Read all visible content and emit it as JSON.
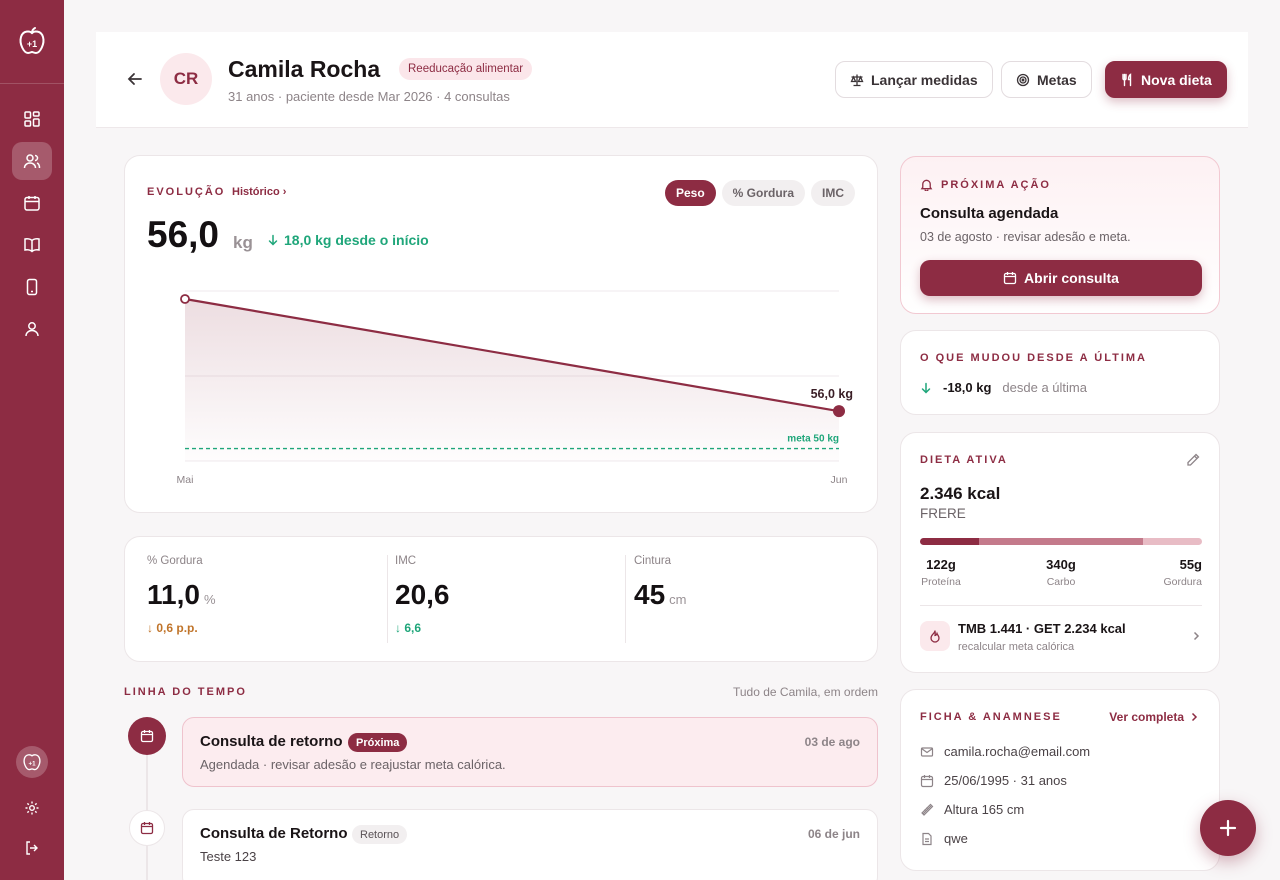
{
  "sidebar": {
    "logo_text": "+1",
    "active_item": "patients"
  },
  "header": {
    "initials": "CR",
    "name": "Camila Rocha",
    "tag": "Reeducação alimentar",
    "subtitle": "31 anos · paciente desde Mar 2026 · 4 consultas",
    "buttons": {
      "measure": "Lançar medidas",
      "goals": "Metas",
      "new_diet": "Nova dieta"
    }
  },
  "evolution": {
    "label": "EVOLUÇÃO",
    "history_link": "Histórico",
    "tabs": [
      "Peso",
      "% Gordura",
      "IMC"
    ],
    "active_tab": "Peso",
    "value": "56,0",
    "unit": "kg",
    "delta": "18,0 kg desde o início",
    "end_label": "56,0 kg",
    "goal_label": "meta 50 kg"
  },
  "chart_data": {
    "type": "line",
    "x": [
      "Mai",
      "Jun"
    ],
    "series": [
      {
        "values": [
          74.0,
          56.0
        ]
      }
    ],
    "goal": 50,
    "y_unit": "kg"
  },
  "metrics": [
    {
      "label": "% Gordura",
      "value": "11,0",
      "unit": "%",
      "delta": "0,6 p.p.",
      "delta_color": "#c0742a"
    },
    {
      "label": "IMC",
      "value": "20,6",
      "unit": "",
      "delta": "6,6",
      "delta_color": "#1fa67a"
    },
    {
      "label": "Cintura",
      "value": "45",
      "unit": "cm",
      "delta": "",
      "delta_color": "#1fa67a"
    }
  ],
  "timeline": {
    "label": "LINHA DO TEMPO",
    "subtitle": "Tudo de Camila, em ordem",
    "items": [
      {
        "title": "Consulta de retorno",
        "tag": "Próxima",
        "date": "03 de ago",
        "desc": "Agendada · revisar adesão e reajustar meta calórica."
      },
      {
        "title": "Consulta de Retorno",
        "tag": "Retorno",
        "date": "06 de jun",
        "desc": "Teste 123"
      }
    ]
  },
  "next_action": {
    "label": "PRÓXIMA AÇÃO",
    "title": "Consulta agendada",
    "subtitle": "03 de agosto · revisar adesão e meta.",
    "button": "Abrir consulta"
  },
  "changes": {
    "label": "O QUE MUDOU DESDE A ÚLTIMA",
    "value": "-18,0 kg",
    "note": "desde a última"
  },
  "diet": {
    "label": "DIETA ATIVA",
    "kcal": "2.346 kcal",
    "formula": "FRERE",
    "macros": [
      {
        "grams": "122g",
        "name": "Proteína",
        "share": 0.21,
        "color": "#8d2c43"
      },
      {
        "grams": "340g",
        "name": "Carbo",
        "share": 0.58,
        "color": "#c47a8b"
      },
      {
        "grams": "55g",
        "name": "Gordura",
        "share": 0.21,
        "color": "#e8bcc5"
      }
    ],
    "tmb": "TMB 1.441 · GET 2.234 kcal",
    "tmb_sub": "recalcular meta calórica"
  },
  "ficha": {
    "label": "FICHA & ANAMNESE",
    "link": "Ver completa",
    "email": "camila.rocha@email.com",
    "birth": "25/06/1995 · 31 anos",
    "height": "Altura 165 cm",
    "note": "qwe"
  }
}
